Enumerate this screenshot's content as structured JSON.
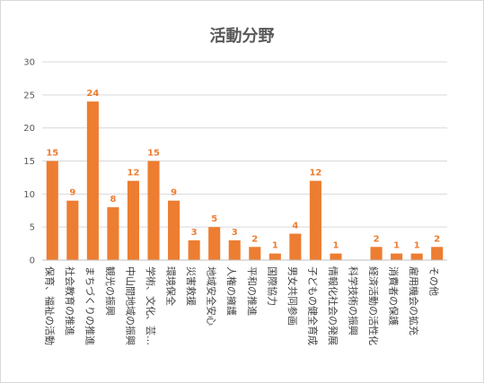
{
  "chart_data": {
    "type": "bar",
    "title": "活動分野",
    "xlabel": "",
    "ylabel": "",
    "ylim": [
      0,
      30
    ],
    "yticks": [
      0,
      5,
      10,
      15,
      20,
      25,
      30
    ],
    "grid": true,
    "legend": "none",
    "bar_color": "#ed7d31",
    "label_color": "#ed7d31",
    "categories": [
      "保育、福祉の活動",
      "社会教育の推進",
      "まちづくりの推進",
      "観光の振興",
      "中山間地域の振興",
      "学術、文化、芸…",
      "環境保全",
      "災害救援",
      "地域安全安心",
      "人権の擁護",
      "平和の推進",
      "国際協力",
      "男女共同参画",
      "子どもの健全育成",
      "情報化社会の発展",
      "科学技術の振興",
      "経済活動の活性化",
      "消費者の保護",
      "雇用機会の拡充",
      "その他"
    ],
    "values": [
      15,
      9,
      24,
      8,
      12,
      15,
      9,
      3,
      5,
      3,
      2,
      1,
      4,
      12,
      1,
      0,
      2,
      1,
      1,
      2
    ],
    "value_labels": [
      "15",
      "9",
      "24",
      "8",
      "12",
      "15",
      "9",
      "3",
      "5",
      "3",
      "2",
      "1",
      "4",
      "12",
      "1",
      "",
      "2",
      "1",
      "1",
      "2"
    ]
  }
}
